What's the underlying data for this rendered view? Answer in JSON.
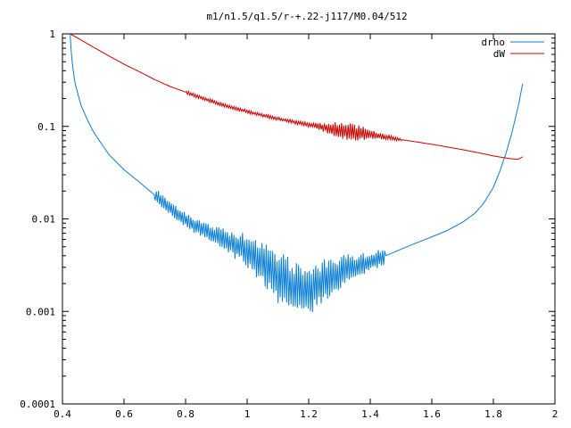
{
  "chart_data": {
    "type": "line",
    "title": "m1/n1.5/q1.5/r-+.22-j117/M0.04/512",
    "xlabel": "",
    "ylabel": "",
    "xlim": [
      0.4,
      2.0
    ],
    "ylim": [
      0.0001,
      1
    ],
    "yscale": "log",
    "grid": false,
    "legend_position": "top-right",
    "x_ticks": [
      0.4,
      0.6,
      0.8,
      1.0,
      1.2,
      1.4,
      1.6,
      1.8,
      2.0
    ],
    "x_tick_labels": [
      "0.4",
      "0.6",
      "0.8",
      "1",
      "1.2",
      "1.4",
      "1.6",
      "1.8",
      "2"
    ],
    "y_ticks": [
      1,
      0.1,
      0.01,
      0.001,
      0.0001
    ],
    "y_tick_labels": [
      "1",
      "0.1",
      "0.01",
      "0.001",
      "0.0001"
    ],
    "series": [
      {
        "name": "drho",
        "color": "#0a7fd4",
        "points": [
          [
            0.425,
            1.0
          ],
          [
            0.43,
            0.55
          ],
          [
            0.44,
            0.3
          ],
          [
            0.46,
            0.17
          ],
          [
            0.48,
            0.12
          ],
          [
            0.5,
            0.088
          ],
          [
            0.55,
            0.05
          ],
          [
            0.6,
            0.034
          ],
          [
            0.65,
            0.025
          ],
          [
            0.7,
            0.018
          ],
          [
            0.75,
            0.013
          ],
          [
            0.8,
            0.0098
          ],
          [
            0.85,
            0.0078
          ],
          [
            0.9,
            0.0064
          ],
          [
            0.95,
            0.0054
          ],
          [
            1.0,
            0.0046
          ],
          [
            1.03,
            0.0039
          ],
          [
            1.06,
            0.0031
          ],
          [
            1.09,
            0.0025
          ],
          [
            1.12,
            0.0021
          ],
          [
            1.15,
            0.0018
          ],
          [
            1.18,
            0.0017
          ],
          [
            1.21,
            0.0018
          ],
          [
            1.24,
            0.002
          ],
          [
            1.27,
            0.0023
          ],
          [
            1.3,
            0.0026
          ],
          [
            1.33,
            0.0029
          ],
          [
            1.36,
            0.0031
          ],
          [
            1.4,
            0.0034
          ],
          [
            1.45,
            0.004
          ],
          [
            1.5,
            0.0047
          ],
          [
            1.55,
            0.0055
          ],
          [
            1.6,
            0.0064
          ],
          [
            1.65,
            0.0075
          ],
          [
            1.7,
            0.0092
          ],
          [
            1.74,
            0.0115
          ],
          [
            1.77,
            0.015
          ],
          [
            1.8,
            0.022
          ],
          [
            1.82,
            0.032
          ],
          [
            1.84,
            0.05
          ],
          [
            1.86,
            0.085
          ],
          [
            1.88,
            0.16
          ],
          [
            1.895,
            0.29
          ]
        ]
      },
      {
        "name": "dW",
        "color": "#cc0000",
        "points": [
          [
            0.425,
            1.0
          ],
          [
            0.45,
            0.9
          ],
          [
            0.5,
            0.72
          ],
          [
            0.55,
            0.58
          ],
          [
            0.6,
            0.47
          ],
          [
            0.65,
            0.39
          ],
          [
            0.7,
            0.32
          ],
          [
            0.75,
            0.27
          ],
          [
            0.8,
            0.235
          ],
          [
            0.85,
            0.205
          ],
          [
            0.9,
            0.18
          ],
          [
            0.95,
            0.16
          ],
          [
            1.0,
            0.145
          ],
          [
            1.05,
            0.132
          ],
          [
            1.1,
            0.121
          ],
          [
            1.15,
            0.112
          ],
          [
            1.2,
            0.104
          ],
          [
            1.25,
            0.097
          ],
          [
            1.3,
            0.091
          ],
          [
            1.35,
            0.086
          ],
          [
            1.4,
            0.081
          ],
          [
            1.45,
            0.077
          ],
          [
            1.5,
            0.072
          ],
          [
            1.55,
            0.068
          ],
          [
            1.6,
            0.064
          ],
          [
            1.65,
            0.06
          ],
          [
            1.7,
            0.056
          ],
          [
            1.75,
            0.052
          ],
          [
            1.8,
            0.048
          ],
          [
            1.85,
            0.045
          ],
          [
            1.88,
            0.044
          ],
          [
            1.895,
            0.047
          ]
        ]
      }
    ]
  }
}
